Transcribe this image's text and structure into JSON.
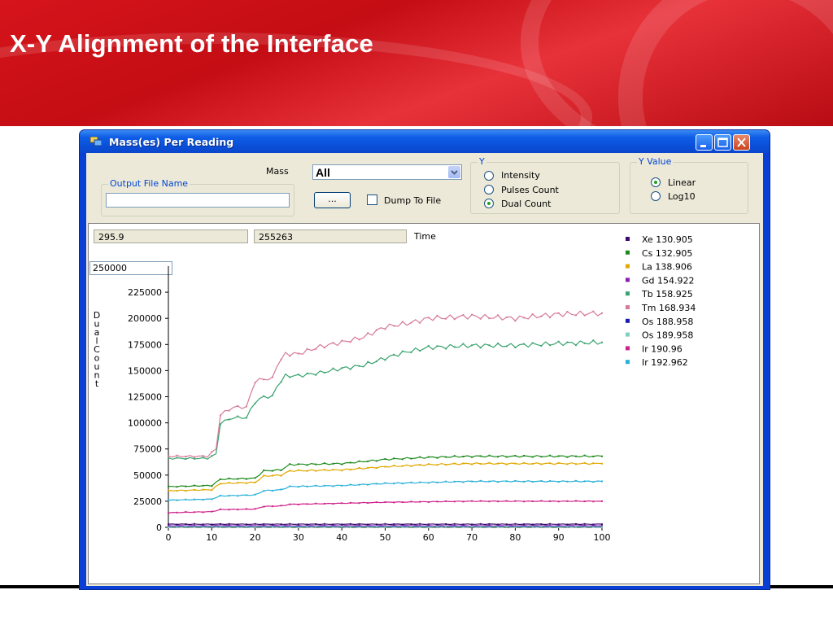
{
  "slide": {
    "title": "X-Y Alignment of the Interface"
  },
  "window": {
    "title": "Mass(es) Per Reading"
  },
  "controls": {
    "mass_label": "Mass",
    "mass_value": "All",
    "output_group_label": "Output File Name",
    "output_file_value": "",
    "browse_label": "...",
    "dump_label": "Dump To File",
    "dump_checked": false,
    "y_group_label": "Y",
    "y_options": [
      "Intensity",
      "Pulses Count",
      "Dual Count"
    ],
    "y_selected": "Dual Count",
    "yvalue_group_label": "Y Value",
    "yvalue_options": [
      "Linear",
      "Log10"
    ],
    "yvalue_selected": "Linear"
  },
  "readouts": {
    "x_value": "295.9",
    "y_value": "255263",
    "time_label": "Time",
    "ymax_value": "250000"
  },
  "colors": {
    "window_title": "#0a4fd8",
    "form_bg": "#ece9d8",
    "banner": "#d6141b"
  },
  "chart_data": {
    "type": "line",
    "ylabel": "Dual Count",
    "xlim": [
      0,
      100
    ],
    "ylim": [
      0,
      250000
    ],
    "x_ticks": [
      0,
      10,
      20,
      30,
      40,
      50,
      60,
      70,
      80,
      90,
      100
    ],
    "y_ticks": [
      0,
      25000,
      50000,
      75000,
      100000,
      125000,
      150000,
      175000,
      200000,
      225000
    ],
    "legend_position": "right",
    "series": [
      {
        "name": "Xe 130.905",
        "color": "#3d0a6b",
        "x": [
          0,
          100
        ],
        "y": [
          3000,
          3000
        ]
      },
      {
        "name": "Cs 132.905",
        "color": "#1e8a1e",
        "x": [
          0,
          10,
          12,
          20,
          22,
          26,
          28,
          40,
          50,
          60,
          70,
          80,
          90,
          100
        ],
        "y": [
          39000,
          40000,
          46000,
          47000,
          54000,
          55000,
          60000,
          61000,
          65000,
          67000,
          68000,
          68000,
          68000,
          68000
        ]
      },
      {
        "name": "La 138.906",
        "color": "#e0a800",
        "x": [
          0,
          10,
          12,
          20,
          22,
          26,
          28,
          40,
          50,
          60,
          70,
          80,
          90,
          100
        ],
        "y": [
          35000,
          36000,
          42000,
          43000,
          49000,
          50000,
          54000,
          55000,
          58000,
          60000,
          61000,
          61000,
          61000,
          61000
        ]
      },
      {
        "name": "Gd 154.922",
        "color": "#8a1fb0",
        "x": [
          0,
          100
        ],
        "y": [
          1500,
          1500
        ]
      },
      {
        "name": "Tb 158.925",
        "color": "#3aa36f",
        "x": [
          0,
          9,
          11,
          12,
          15,
          18,
          20,
          22,
          24,
          25,
          27,
          30,
          35,
          40,
          45,
          50,
          55,
          60,
          70,
          80,
          90,
          100
        ],
        "y": [
          66000,
          66000,
          70000,
          100000,
          105000,
          105000,
          120000,
          125000,
          125000,
          135000,
          145000,
          145000,
          148000,
          152000,
          155000,
          162000,
          168000,
          172000,
          174000,
          174000,
          176000,
          177000
        ]
      },
      {
        "name": "Tm 168.934",
        "color": "#d67a98",
        "x": [
          0,
          9,
          11,
          12,
          15,
          18,
          20,
          22,
          24,
          25,
          27,
          30,
          35,
          40,
          45,
          50,
          55,
          60,
          70,
          80,
          90,
          100
        ],
        "y": [
          68000,
          68000,
          75000,
          108000,
          115000,
          115000,
          140000,
          142000,
          142000,
          155000,
          166000,
          166000,
          173000,
          177000,
          182000,
          192000,
          195000,
          200000,
          202000,
          200000,
          204000,
          205000
        ]
      },
      {
        "name": "Os 188.958",
        "color": "#1a1ab5",
        "x": [
          0,
          100
        ],
        "y": [
          800,
          800
        ]
      },
      {
        "name": "Os 189.958",
        "color": "#7fd0c0",
        "x": [
          0,
          100
        ],
        "y": [
          400,
          400
        ]
      },
      {
        "name": "Ir 190.96",
        "color": "#d0208a",
        "x": [
          0,
          10,
          12,
          20,
          22,
          26,
          28,
          40,
          50,
          60,
          70,
          80,
          90,
          100
        ],
        "y": [
          14000,
          15000,
          17000,
          17500,
          20000,
          20500,
          22000,
          23000,
          24000,
          24500,
          25000,
          25000,
          25000,
          25000
        ]
      },
      {
        "name": "Ir 192.962",
        "color": "#27b0d8",
        "x": [
          0,
          10,
          12,
          20,
          22,
          26,
          28,
          40,
          50,
          60,
          70,
          80,
          90,
          100
        ],
        "y": [
          26000,
          27000,
          30000,
          31000,
          35000,
          36000,
          39000,
          40000,
          42000,
          43000,
          44000,
          44000,
          44000,
          44000
        ]
      }
    ]
  }
}
